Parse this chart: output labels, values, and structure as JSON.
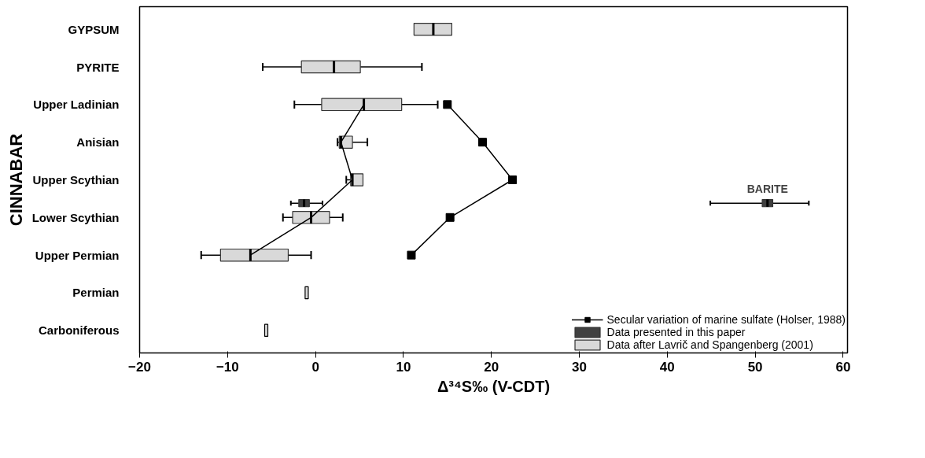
{
  "chart_data": {
    "type": "box",
    "orientation": "horizontal",
    "categories": [
      "GYPSUM",
      "PYRITE",
      "Upper Ladinian",
      "Anisian",
      "Upper Scythian",
      "Lower Scythian",
      "Upper Permian",
      "Permian",
      "Carboniferous"
    ],
    "series": [
      {
        "name": "Data after Lavrič and Spangenberg (2001)",
        "color": "#d9d9d9",
        "boxes": [
          {
            "low": 11.2,
            "q1": 11.2,
            "median": 13.4,
            "q3": 15.5,
            "high": 15.5
          },
          {
            "low": -6.0,
            "q1": -1.6,
            "median": 2.1,
            "q3": 5.1,
            "high": 12.1
          },
          {
            "low": -2.4,
            "q1": 0.7,
            "median": 5.5,
            "q3": 9.8,
            "high": 13.9
          },
          {
            "low": 2.5,
            "q1": 2.7,
            "median": 2.9,
            "q3": 4.2,
            "high": 5.9
          },
          {
            "low": 3.5,
            "q1": 4.0,
            "median": 4.2,
            "q3": 5.4,
            "high": 5.4
          },
          {
            "low": -3.7,
            "q1": -2.6,
            "median": -0.5,
            "q3": 1.6,
            "high": 3.1
          },
          {
            "low": -13.0,
            "q1": -10.8,
            "median": -7.4,
            "q3": -3.1,
            "high": -0.5
          },
          {
            "low": -1.0,
            "q1": -1.0,
            "median": -1.0,
            "q3": -1.0,
            "high": -1.0
          },
          {
            "low": -5.6,
            "q1": -5.6,
            "median": -5.6,
            "q3": -5.6,
            "high": -5.6
          }
        ]
      },
      {
        "name": "Data presented in this paper",
        "color": "#404040",
        "boxes": [
          null,
          null,
          null,
          null,
          null,
          {
            "low": -2.8,
            "q1": -1.9,
            "median": -1.3,
            "q3": -0.7,
            "high": 0.8
          },
          null,
          null,
          null
        ]
      },
      {
        "color": "#404040",
        "boxes": [
          null,
          null,
          null,
          null,
          null,
          {
            "low": 44.9,
            "q1": 50.8,
            "median": 51.4,
            "q3": 52.0,
            "high": 56.1
          },
          null,
          null,
          null
        ]
      },
      {
        "type": "line",
        "color": "#000000",
        "marker": "none",
        "values": [
          null,
          null,
          5.5,
          2.9,
          4.2,
          -0.5,
          -7.4,
          null,
          null
        ]
      },
      {
        "name": "Secular variation of marine sulfate (Holser, 1988)",
        "type": "line",
        "color": "#000000",
        "marker": "square",
        "values": [
          null,
          null,
          15.0,
          19.0,
          22.4,
          15.3,
          10.9,
          null,
          null
        ]
      }
    ],
    "xlim": [
      -20,
      60.5
    ],
    "xticks": [
      -20,
      -10,
      0,
      10,
      20,
      30,
      40,
      50,
      60
    ],
    "xlabel": "Δ³⁴S‰ (V-CDT)",
    "annotations": [
      "CINNABAR",
      "BARITE"
    ],
    "grid": false,
    "legend": "bottom right"
  }
}
